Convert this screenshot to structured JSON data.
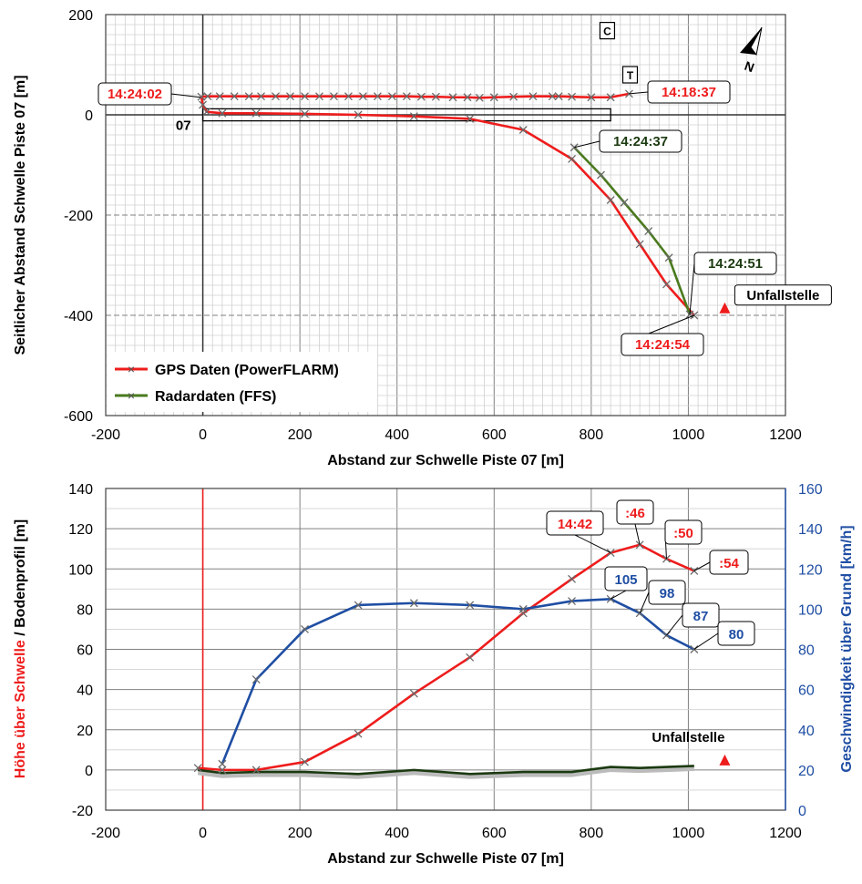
{
  "chart_data": [
    {
      "type": "line",
      "xlabel": "Abstand zur Schwelle Piste 07 [m]",
      "ylabel": "Seitlicher Abstand Schwelle Piste 07 [m]",
      "xlim": [
        -200,
        1200
      ],
      "ylim": [
        -600,
        200
      ],
      "xticks": [
        "-200",
        "0",
        "200",
        "400",
        "600",
        "800",
        "1000",
        "1200"
      ],
      "yticks": [
        "-600",
        "-400",
        "-200",
        "0",
        "200"
      ],
      "grid": true,
      "legend_position": "bottom-left",
      "series": [
        {
          "name": "GPS Daten (PowerFLARM)",
          "color": "#ee1c1c",
          "x": [
            878,
            840,
            800,
            760,
            733,
            720,
            680,
            640,
            600,
            570,
            545,
            515,
            480,
            450,
            420,
            390,
            360,
            330,
            300,
            270,
            240,
            210,
            180,
            150,
            120,
            95,
            65,
            35,
            10,
            -3,
            0,
            8,
            40,
            110,
            210,
            320,
            435,
            550,
            660,
            760,
            840,
            900,
            955,
            1012
          ],
          "y": [
            42,
            35,
            35,
            36,
            37,
            37,
            37,
            36,
            35,
            34,
            35,
            35,
            36,
            36,
            37,
            37,
            37,
            37,
            37,
            37,
            37,
            37,
            37,
            37,
            37,
            37,
            37,
            37,
            37,
            36,
            20,
            6,
            3,
            3,
            2,
            0,
            -3,
            -8,
            -30,
            -88,
            -170,
            -258,
            -338,
            -400
          ]
        },
        {
          "name": "Radardaten (FFS)",
          "color": "#4a7a1e",
          "x": [
            765,
            820,
            868,
            918,
            960,
            1003
          ],
          "y": [
            -65,
            -120,
            -175,
            -232,
            -285,
            -398
          ]
        }
      ],
      "markers": [
        {
          "label": "C",
          "x": 833,
          "y": 168
        },
        {
          "label": "T",
          "x": 880,
          "y": 80
        }
      ],
      "runway_label": "07",
      "annotations": [
        {
          "text": "14:24:02",
          "color": "#ee1c1c",
          "x": -5,
          "y": 35
        },
        {
          "text": "14:18:37",
          "color": "#ee1c1c",
          "x": 878,
          "y": 42
        },
        {
          "text": "14:24:37",
          "color": "#1b3a10",
          "x": 765,
          "y": -65
        },
        {
          "text": "14:24:51",
          "color": "#1b3a10",
          "x": 1003,
          "y": -398
        },
        {
          "text": "14:24:54",
          "color": "#ee1c1c",
          "x": 1012,
          "y": -400
        },
        {
          "text": "Unfallstelle",
          "color": "#000000",
          "x": 1075,
          "y": -385
        }
      ]
    },
    {
      "type": "line",
      "xlabel": "Abstand zur Schwelle Piste 07 [m]",
      "ylabel_left": "Höhe über Schwelle / Bodenprofil [m]",
      "ylabel_left_part1": "Höhe über Schwelle",
      "ylabel_left_part2": " / Bodenprofil [m]",
      "ylabel_right": "Geschwindigkeit über Grund [km/h]",
      "xlim": [
        -200,
        1200
      ],
      "ylim_left": [
        -20,
        140
      ],
      "ylim_right": [
        0,
        160
      ],
      "xticks": [
        "-200",
        "0",
        "200",
        "400",
        "600",
        "800",
        "1000",
        "1200"
      ],
      "yticks_left": [
        "-20",
        "0",
        "20",
        "40",
        "60",
        "80",
        "100",
        "120",
        "140"
      ],
      "yticks_right": [
        "0",
        "20",
        "40",
        "60",
        "80",
        "100",
        "120",
        "140",
        "160"
      ],
      "grid": true,
      "series": [
        {
          "name": "Höhe über Schwelle",
          "color": "#ee1c1c",
          "axis": "left",
          "x": [
            -10,
            40,
            110,
            210,
            320,
            435,
            550,
            660,
            760,
            840,
            900,
            955,
            1012
          ],
          "y": [
            1,
            0,
            0,
            4,
            18,
            38,
            56,
            78,
            95,
            108,
            112,
            105,
            99
          ]
        },
        {
          "name": "Bodenprofil",
          "color": "#1b3a10",
          "axis": "left",
          "x": [
            -10,
            40,
            110,
            210,
            320,
            435,
            550,
            660,
            760,
            840,
            900,
            955,
            1012
          ],
          "y": [
            0,
            -1.5,
            -1,
            -1,
            -2,
            0,
            -2,
            -1,
            -1,
            1.5,
            1,
            1.5,
            2
          ]
        },
        {
          "name": "Geschwindigkeit über Grund",
          "color": "#1f4ea3",
          "axis": "right",
          "x": [
            40,
            110,
            210,
            320,
            435,
            550,
            660,
            760,
            840,
            900,
            955,
            1012
          ],
          "y": [
            23,
            65,
            90,
            102,
            103,
            102,
            100,
            104,
            105,
            98,
            87,
            80
          ]
        }
      ],
      "annotations": [
        {
          "text": "14:42",
          "color": "#ee1c1c",
          "x": 840,
          "y": 108,
          "axis": "left"
        },
        {
          "text": ":46",
          "color": "#ee1c1c",
          "x": 900,
          "y": 112,
          "axis": "left"
        },
        {
          "text": ":50",
          "color": "#ee1c1c",
          "x": 955,
          "y": 105,
          "axis": "left"
        },
        {
          "text": ":54",
          "color": "#ee1c1c",
          "x": 1012,
          "y": 99,
          "axis": "left"
        },
        {
          "text": "105",
          "color": "#1f4ea3",
          "x": 840,
          "y": 105,
          "axis": "right"
        },
        {
          "text": "98",
          "color": "#1f4ea3",
          "x": 900,
          "y": 98,
          "axis": "right"
        },
        {
          "text": "87",
          "color": "#1f4ea3",
          "x": 955,
          "y": 87,
          "axis": "right"
        },
        {
          "text": "80",
          "color": "#1f4ea3",
          "x": 1012,
          "y": 80,
          "axis": "right"
        },
        {
          "text": "Unfallstelle",
          "color": "#000000",
          "x": 1075,
          "y": 5,
          "axis": "left"
        }
      ],
      "threshold_line_x": 0
    }
  ],
  "colors": {
    "gps": "#ee1c1c",
    "radar": "#4a7a1e",
    "radar_dark": "#1b3a10",
    "speed": "#1f4ea3",
    "grid_major": "#808080",
    "grid_minor": "#d0d0d0"
  },
  "icons": {
    "north": "north-arrow-icon"
  }
}
